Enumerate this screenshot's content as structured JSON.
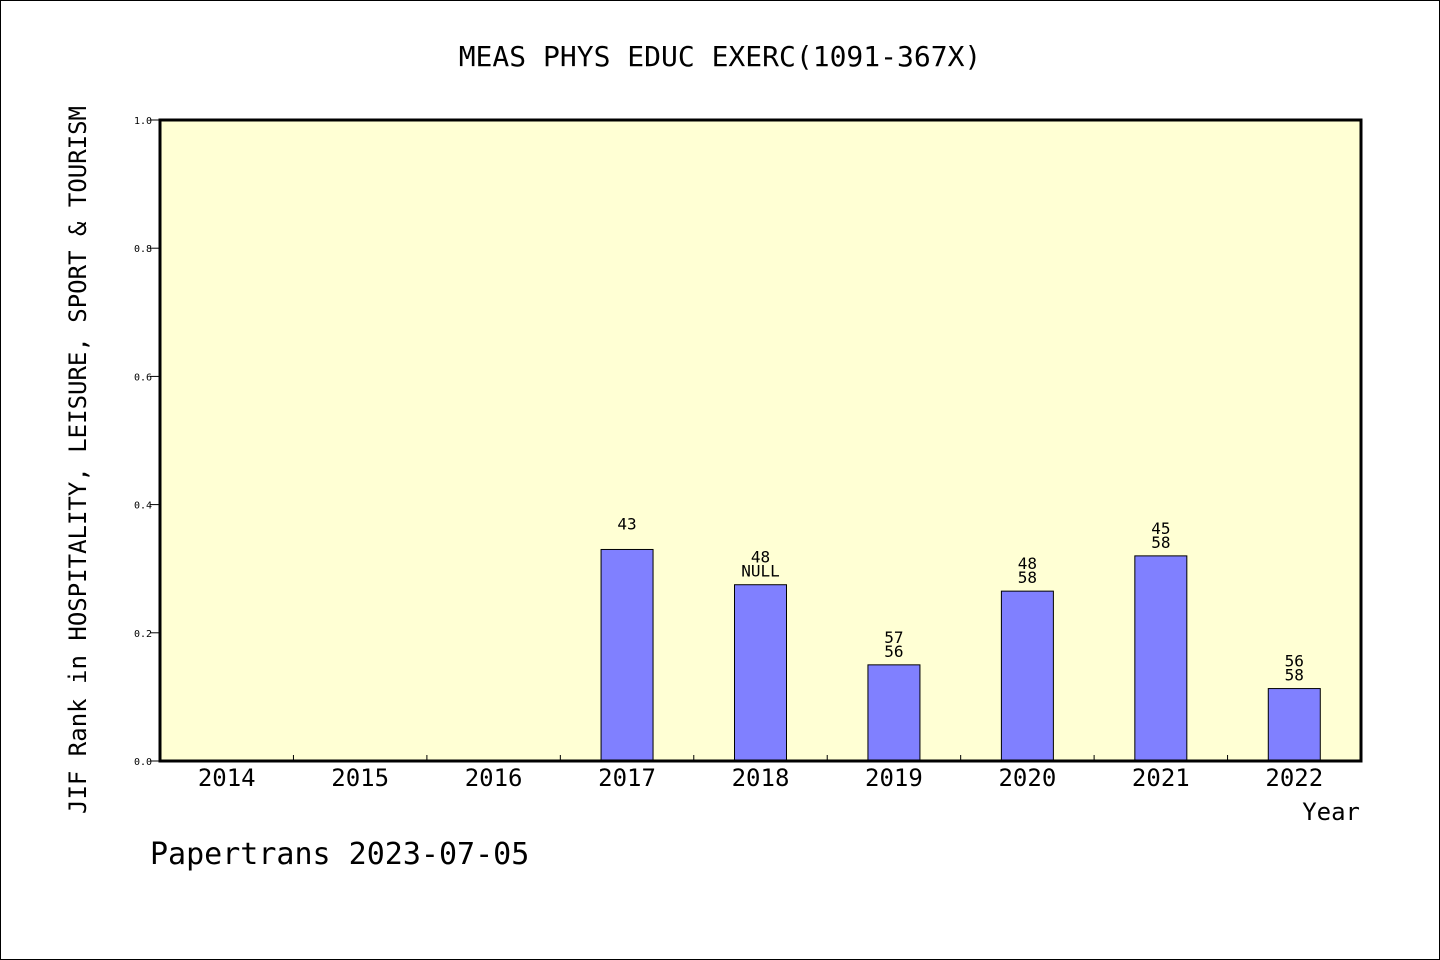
{
  "chart_data": {
    "type": "bar",
    "title": "MEAS PHYS EDUC EXERC(1091-367X)",
    "xlabel": "Year",
    "ylabel": "JIF Rank in HOSPITALITY, LEISURE, SPORT & TOURISM",
    "footer": "Papertrans 2023-07-05",
    "ylim": [
      0,
      1.0
    ],
    "yticks": [
      "0.0",
      "0.2",
      "0.4",
      "0.6",
      "0.8",
      "1.0"
    ],
    "categories": [
      "2014",
      "2015",
      "2016",
      "2017",
      "2018",
      "2019",
      "2020",
      "2021",
      "2022"
    ],
    "values": [
      null,
      null,
      null,
      0.33,
      0.275,
      0.15,
      0.265,
      0.32,
      0.113
    ],
    "labels": [
      [],
      [],
      [],
      [
        "43"
      ],
      [
        "48",
        "NULL"
      ],
      [
        "57",
        "56"
      ],
      [
        "48",
        "58"
      ],
      [
        "45",
        "58"
      ],
      [
        "56",
        "58"
      ]
    ],
    "colors": {
      "plot_bg": "#ffffd4",
      "bar": "#8080ff"
    },
    "grid": false,
    "legend": "none"
  }
}
